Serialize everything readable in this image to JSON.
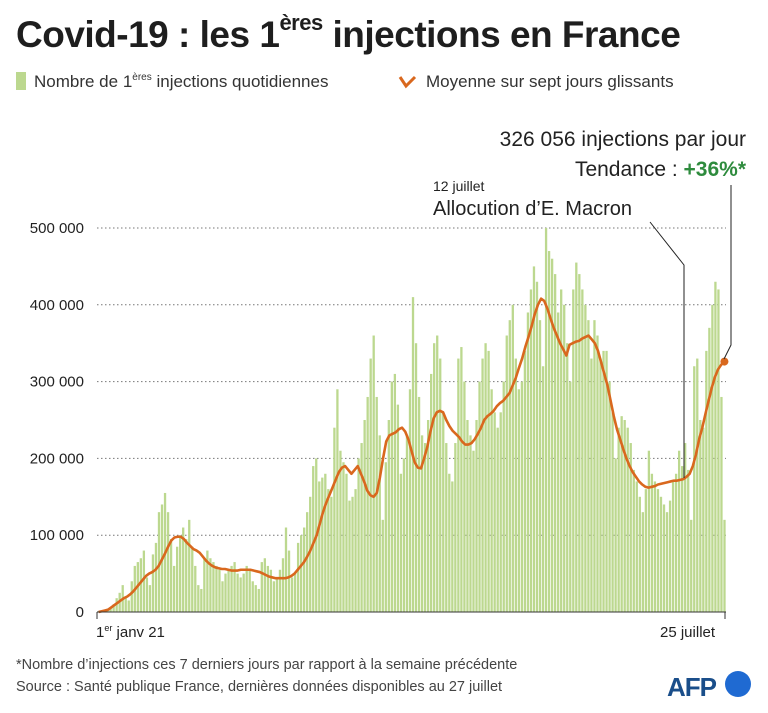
{
  "title": {
    "prefix": "Covid-19 : les 1",
    "sup": "ères",
    "suffix": " injections en France"
  },
  "legend": {
    "bars_prefix": "Nombre de 1",
    "bars_sup": "ères",
    "bars_suffix": " injections quotidiennes",
    "line_label": "Moyenne sur sept jours glissants"
  },
  "annotation_current": {
    "line1": "326 056 injections par jour",
    "trend_label": "Tendance : ",
    "trend_value": "+36%*"
  },
  "annotation_event": {
    "date": "12 juillet",
    "label": "Allocution d’E. Macron"
  },
  "x_axis": {
    "start_sup": "er",
    "start_rest": " janv 21",
    "end_label": "25 juillet"
  },
  "footer": {
    "note": "*Nombre d’injections ces 7 derniers jours par rapport à la semaine précédente",
    "source": "Source : Santé publique France, dernières données disponibles au 27 juillet"
  },
  "branding": {
    "logo_text": "AFP"
  },
  "colors": {
    "bar": "#bcd88f",
    "line": "#d9681e",
    "trend": "#2e8b3d",
    "logo": "#1f6ad2"
  },
  "chart_data": {
    "type": "bar",
    "ylim": [
      0,
      520000
    ],
    "yticks": [
      0,
      100000,
      200000,
      300000,
      400000,
      500000
    ],
    "ytick_labels": [
      "0",
      "100 000",
      "200 000",
      "300 000",
      "400 000",
      "500 000"
    ],
    "x_start": "2021-01-01",
    "x_end": "2021-07-25",
    "grid": "horizontal dotted",
    "series": [
      {
        "name": "Nombre de 1ères injections quotidiennes",
        "kind": "bar",
        "values": [
          1000,
          1500,
          2500,
          4000,
          6000,
          10000,
          18000,
          25000,
          35000,
          20000,
          15000,
          40000,
          60000,
          65000,
          70000,
          80000,
          45000,
          35000,
          75000,
          90000,
          130000,
          140000,
          155000,
          130000,
          95000,
          60000,
          85000,
          100000,
          110000,
          95000,
          120000,
          85000,
          60000,
          35000,
          30000,
          70000,
          80000,
          70000,
          65000,
          60000,
          55000,
          40000,
          50000,
          55000,
          60000,
          65000,
          50000,
          45000,
          50000,
          60000,
          55000,
          40000,
          35000,
          30000,
          65000,
          70000,
          60000,
          55000,
          40000,
          45000,
          55000,
          70000,
          110000,
          80000,
          45000,
          50000,
          90000,
          100000,
          110000,
          130000,
          150000,
          190000,
          200000,
          170000,
          175000,
          180000,
          160000,
          150000,
          240000,
          290000,
          210000,
          195000,
          180000,
          145000,
          150000,
          160000,
          200000,
          220000,
          250000,
          280000,
          330000,
          360000,
          280000,
          230000,
          120000,
          195000,
          250000,
          300000,
          310000,
          270000,
          180000,
          200000,
          230000,
          290000,
          410000,
          350000,
          280000,
          230000,
          220000,
          250000,
          310000,
          350000,
          360000,
          330000,
          260000,
          220000,
          180000,
          170000,
          220000,
          330000,
          345000,
          300000,
          250000,
          230000,
          210000,
          250000,
          300000,
          330000,
          350000,
          340000,
          290000,
          260000,
          240000,
          260000,
          300000,
          360000,
          380000,
          400000,
          330000,
          290000,
          300000,
          340000,
          390000,
          420000,
          450000,
          430000,
          380000,
          320000,
          500000,
          470000,
          460000,
          440000,
          390000,
          420000,
          400000,
          350000,
          300000,
          420000,
          455000,
          440000,
          420000,
          400000,
          380000,
          330000,
          380000,
          360000,
          330000,
          340000,
          340000,
          300000,
          260000,
          200000,
          240000,
          255000,
          250000,
          240000,
          220000,
          185000,
          170000,
          150000,
          130000,
          160000,
          210000,
          180000,
          170000,
          160000,
          150000,
          140000,
          130000,
          145000,
          170000,
          180000,
          210000,
          190000,
          220000,
          185000,
          120000,
          320000,
          330000,
          250000,
          240000,
          340000,
          370000,
          400000,
          430000,
          420000,
          280000,
          120000
        ],
        "partial_note": "values estimated from bar heights"
      },
      {
        "name": "Moyenne sur sept jours glissants",
        "kind": "line",
        "values": [
          0,
          1000,
          2000,
          3000,
          6000,
          9000,
          12000,
          15000,
          18000,
          20000,
          23000,
          27000,
          32000,
          37000,
          42000,
          47000,
          50000,
          52000,
          55000,
          60000,
          68000,
          76000,
          85000,
          93000,
          97000,
          98000,
          98000,
          95000,
          90000,
          86000,
          82000,
          80000,
          77000,
          72000,
          67000,
          63000,
          60000,
          58000,
          57000,
          56000,
          56000,
          55000,
          54000,
          54000,
          54000,
          55000,
          55000,
          55000,
          55000,
          54000,
          53000,
          52000,
          50000,
          48000,
          46000,
          45000,
          44000,
          44000,
          44000,
          44000,
          45000,
          47000,
          50000,
          55000,
          60000,
          65000,
          72000,
          80000,
          90000,
          100000,
          115000,
          130000,
          142000,
          152000,
          162000,
          172000,
          182000,
          188000,
          190000,
          185000,
          180000,
          185000,
          190000,
          180000,
          170000,
          158000,
          152000,
          150000,
          155000,
          175000,
          200000,
          222000,
          230000,
          232000,
          234000,
          238000,
          240000,
          235000,
          225000,
          210000,
          195000,
          188000,
          187000,
          200000,
          215000,
          235000,
          252000,
          260000,
          262000,
          260000,
          250000,
          242000,
          236000,
          232000,
          228000,
          222000,
          218000,
          218000,
          220000,
          225000,
          232000,
          240000,
          250000,
          255000,
          258000,
          262000,
          268000,
          272000,
          275000,
          280000,
          285000,
          295000,
          305000,
          318000,
          330000,
          345000,
          358000,
          372000,
          388000,
          400000,
          408000,
          405000,
          395000,
          382000,
          370000,
          360000,
          350000,
          342000,
          334000,
          348000,
          350000,
          352000,
          353000,
          356000,
          358000,
          360000,
          355000,
          350000,
          340000,
          325000,
          310000,
          295000,
          275000,
          255000,
          238000,
          225000,
          212000,
          200000,
          190000,
          182000,
          176000,
          170000,
          166000,
          163000,
          162000,
          163000,
          164000,
          166000,
          167000,
          168000,
          169000,
          170000,
          171000,
          171000,
          172000,
          173000,
          176000,
          180000,
          190000,
          205000,
          225000,
          240000,
          258000,
          275000,
          292000,
          306000,
          316000,
          322000,
          326056
        ]
      }
    ]
  }
}
